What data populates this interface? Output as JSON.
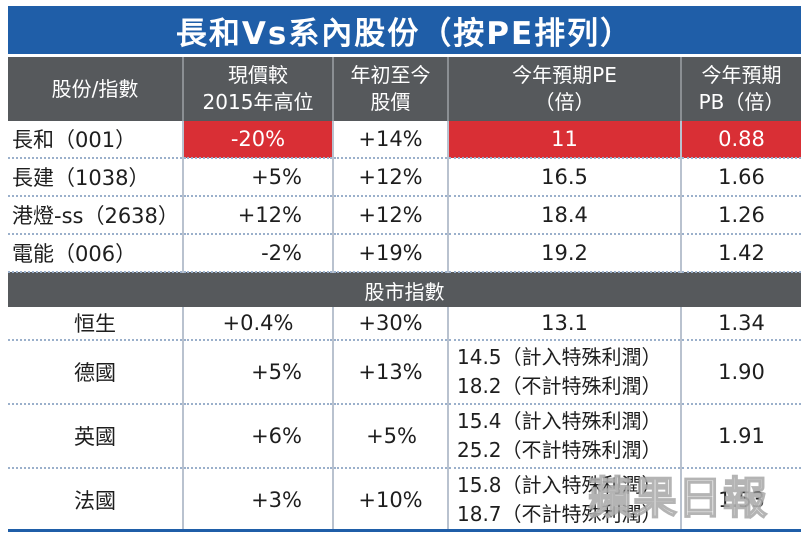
{
  "title": "長和Vs系內股份（按PE排列）",
  "headers": {
    "c1": "股份/指數",
    "c2a": "現價較",
    "c2b": "2015年高位",
    "c3a": "年初至今",
    "c3b": "股價",
    "c4a": "今年預期PE",
    "c4b": "（倍）",
    "c5a": "今年預期",
    "c5b": "PB（倍）"
  },
  "stocks": [
    {
      "name": "長和（001）",
      "vs_high": "-20%",
      "ytd": "+14%",
      "pe": "11",
      "pb": "0.88"
    },
    {
      "name": "長建（1038）",
      "vs_high": "+5%",
      "ytd": "+12%",
      "pe": "16.5",
      "pb": "1.66"
    },
    {
      "name": "港燈-ss（2638）",
      "vs_high": "+12%",
      "ytd": "+12%",
      "pe": "18.4",
      "pb": "1.26"
    },
    {
      "name": "電能（006）",
      "vs_high": "-2%",
      "ytd": "+19%",
      "pe": "19.2",
      "pb": "1.42"
    }
  ],
  "section_label": "股市指數",
  "indices": [
    {
      "name": "恒生",
      "vs_high": "+0.4%",
      "ytd": "+30%",
      "pe1": "13.1",
      "pe2": "",
      "pb": "1.34"
    },
    {
      "name": "德國",
      "vs_high": "+5%",
      "ytd": "+13%",
      "pe1": "14.5（計入特殊利潤）",
      "pe2": "18.2（不計特殊利潤）",
      "pb": "1.90"
    },
    {
      "name": "英國",
      "vs_high": "+6%",
      "ytd": "+5%",
      "pe1": "15.4（計入特殊利潤）",
      "pe2": "25.2（不計特殊利潤）",
      "pb": "1.91"
    },
    {
      "name": "法國",
      "vs_high": "+3%",
      "ytd": "+10%",
      "pe1": "15.8（計入特殊利潤）",
      "pe2": "18.7（不計特殊利潤）",
      "pb": "1.53"
    }
  ],
  "watermark": "蘋果日報",
  "colors": {
    "title_bg": "#1f5ea8",
    "header_bg": "#56595c",
    "highlight": "#d92f35"
  }
}
